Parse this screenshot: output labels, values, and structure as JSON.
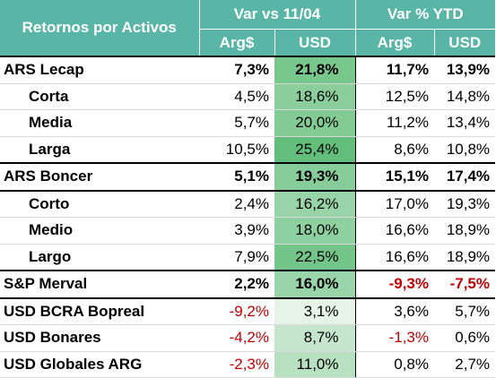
{
  "header": {
    "title": "Retornos por Activos",
    "group1": "Var vs 11/04",
    "group2": "Var % YTD",
    "sub_cols": [
      "Arg$",
      "USD",
      "Arg$",
      "USD"
    ]
  },
  "colors": {
    "header_bg": "#59b6a6",
    "negative": "#c00000",
    "usd_heat_low": "#e6f4e8",
    "usd_heat_high": "#63be7b"
  },
  "rows": [
    {
      "label": "ARS Lecap",
      "bold": true,
      "sub": false,
      "group_top": true,
      "v1": "7,3%",
      "v2": "21,8%",
      "v3": "11,7%",
      "v4": "13,9%",
      "usd_value": 21.8
    },
    {
      "label": "Corta",
      "bold": false,
      "sub": true,
      "group_top": false,
      "v1": "4,5%",
      "v2": "18,6%",
      "v3": "12,5%",
      "v4": "14,8%",
      "usd_value": 18.6
    },
    {
      "label": "Media",
      "bold": false,
      "sub": true,
      "group_top": false,
      "v1": "5,7%",
      "v2": "20,0%",
      "v3": "11,2%",
      "v4": "13,4%",
      "usd_value": 20.0
    },
    {
      "label": "Larga",
      "bold": false,
      "sub": true,
      "group_top": false,
      "v1": "10,5%",
      "v2": "25,4%",
      "v3": "8,6%",
      "v4": "10,8%",
      "usd_value": 25.4
    },
    {
      "label": "ARS Boncer",
      "bold": true,
      "sub": false,
      "group_top": true,
      "v1": "5,1%",
      "v2": "19,3%",
      "v3": "15,1%",
      "v4": "17,4%",
      "usd_value": 19.3
    },
    {
      "label": "Corto",
      "bold": false,
      "sub": true,
      "group_top": true,
      "v1": "2,4%",
      "v2": "16,2%",
      "v3": "17,0%",
      "v4": "19,3%",
      "usd_value": 16.2
    },
    {
      "label": "Medio",
      "bold": false,
      "sub": true,
      "group_top": false,
      "v1": "3,9%",
      "v2": "18,0%",
      "v3": "16,6%",
      "v4": "18,9%",
      "usd_value": 18.0
    },
    {
      "label": "Largo",
      "bold": false,
      "sub": true,
      "group_top": false,
      "v1": "7,9%",
      "v2": "22,5%",
      "v3": "16,6%",
      "v4": "18,9%",
      "usd_value": 22.5
    },
    {
      "label": "S&P Merval",
      "bold": true,
      "sub": false,
      "group_top": true,
      "v1": "2,2%",
      "v2": "16,0%",
      "v3": "-9,3%",
      "v4": "-7,5%",
      "usd_value": 16.0
    },
    {
      "label": "USD BCRA Bopreal",
      "bold": false,
      "sub": false,
      "group_top": true,
      "v1": "-9,2%",
      "v2": "3,1%",
      "v3": "3,6%",
      "v4": "5,7%",
      "usd_value": 3.1
    },
    {
      "label": "USD Bonares",
      "bold": false,
      "sub": false,
      "group_top": false,
      "v1": "-4,2%",
      "v2": "8,7%",
      "v3": "-1,3%",
      "v4": "0,6%",
      "usd_value": 8.7
    },
    {
      "label": "USD Globales ARG",
      "bold": false,
      "sub": false,
      "group_top": false,
      "v1": "-2,3%",
      "v2": "11,0%",
      "v3": "0,8%",
      "v4": "2,7%",
      "usd_value": 11.0
    }
  ]
}
